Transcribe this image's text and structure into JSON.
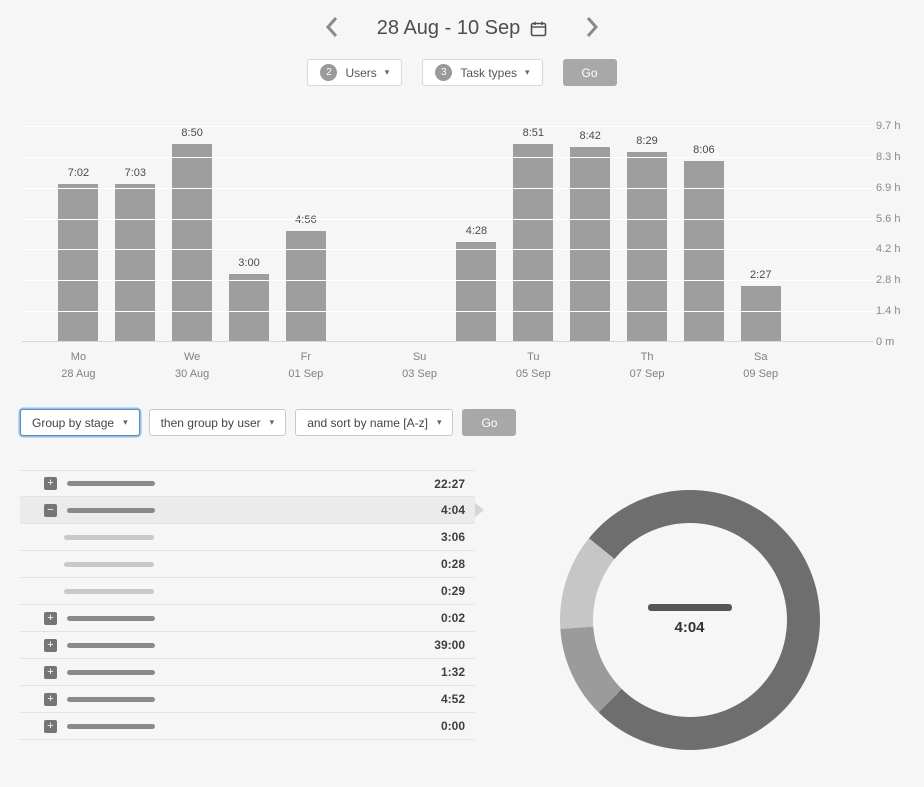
{
  "colors": {
    "page_bg": "#f6f6f6",
    "bar": "#9e9e9e",
    "grid_line": "#ffffff",
    "go_button_bg": "#a8a8a8",
    "selected_row_bg": "#ebebeb",
    "focus_border": "#4a90d2",
    "pill_dark": "#8a8a8a",
    "pill_light": "#c9c9c9"
  },
  "header": {
    "title": "28 Aug - 10 Sep",
    "prev_icon": "chevron-left",
    "next_icon": "chevron-right",
    "calendar_icon": "calendar"
  },
  "filters": {
    "users": {
      "count": "2",
      "label": "Users"
    },
    "task_types": {
      "count": "3",
      "label": "Task types"
    },
    "go_label": "Go"
  },
  "chart_data": [
    {
      "type": "bar",
      "title": "",
      "xlabel": "",
      "ylabel": "",
      "unit": "h:mm",
      "y_max_hours": 9.7,
      "y_ticks": [
        "9.7 h",
        "8.3 h",
        "6.9 h",
        "5.6 h",
        "4.2 h",
        "2.8 h",
        "1.4 h",
        "0 m"
      ],
      "grid": "horizontal",
      "legend": "none",
      "days": [
        {
          "value": "7:02",
          "label": "Mo",
          "sublabel": "28 Aug"
        },
        {
          "value": "7:03",
          "label": "",
          "sublabel": ""
        },
        {
          "value": "8:50",
          "label": "We",
          "sublabel": "30 Aug"
        },
        {
          "value": "3:00",
          "label": "",
          "sublabel": ""
        },
        {
          "value": "4:56",
          "label": "Fr",
          "sublabel": "01 Sep"
        },
        {
          "value": null,
          "label": "",
          "sublabel": ""
        },
        {
          "value": null,
          "label": "Su",
          "sublabel": "03 Sep"
        },
        {
          "value": "4:28",
          "label": "",
          "sublabel": ""
        },
        {
          "value": "8:51",
          "label": "Tu",
          "sublabel": "05 Sep"
        },
        {
          "value": "8:42",
          "label": "",
          "sublabel": ""
        },
        {
          "value": "8:29",
          "label": "Th",
          "sublabel": "07 Sep"
        },
        {
          "value": "8:06",
          "label": "",
          "sublabel": ""
        },
        {
          "value": "2:27",
          "label": "Sa",
          "sublabel": "09 Sep"
        },
        {
          "value": null,
          "label": "",
          "sublabel": ""
        }
      ]
    },
    {
      "type": "pie",
      "style": "donut",
      "center_label": "4:04",
      "segments": [
        {
          "value": "3:06",
          "color": "#6e6e6e"
        },
        {
          "value": "0:28",
          "color": "#9b9b9b"
        },
        {
          "value": "0:29",
          "color": "#c6c6c6"
        }
      ]
    }
  ],
  "grouping": {
    "group_by": "Group by stage",
    "then_group_by": "then group by user",
    "sort_by": "and sort by name [A-z]",
    "go_label": "Go"
  },
  "list": {
    "rows": [
      {
        "type": "group",
        "expand": "plus",
        "time": "22:27",
        "selected": false
      },
      {
        "type": "group",
        "expand": "minus",
        "time": "4:04",
        "selected": true
      },
      {
        "type": "sub",
        "expand": null,
        "time": "3:06",
        "selected": false
      },
      {
        "type": "sub",
        "expand": null,
        "time": "0:28",
        "selected": false
      },
      {
        "type": "sub",
        "expand": null,
        "time": "0:29",
        "selected": false
      },
      {
        "type": "group",
        "expand": "plus",
        "time": "0:02",
        "selected": false
      },
      {
        "type": "group",
        "expand": "plus",
        "time": "39:00",
        "selected": false
      },
      {
        "type": "group",
        "expand": "plus",
        "time": "1:32",
        "selected": false
      },
      {
        "type": "group",
        "expand": "plus",
        "time": "4:52",
        "selected": false
      },
      {
        "type": "group",
        "expand": "plus",
        "time": "0:00",
        "selected": false
      }
    ]
  }
}
